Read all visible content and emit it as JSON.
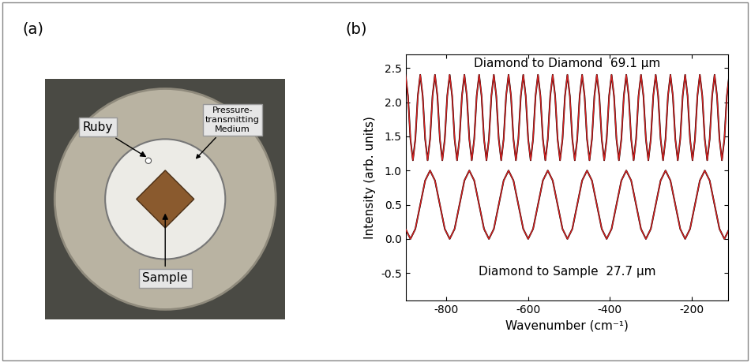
{
  "panel_a": {
    "label": "(a)",
    "labels": [
      "Ruby",
      "Pressure-\ntransmitting\nMedium",
      "Sample"
    ]
  },
  "chart_data": {
    "type": "line",
    "panel_label": "(b)",
    "x_label": "Wavenumber (cm⁻¹)",
    "y_label": "Intensity (arb. units)",
    "annotations": [
      "Diamond to Diamond  69.1 μm",
      "Diamond to Sample  27.7 μm"
    ],
    "xlim": [
      -900,
      -110
    ],
    "xticks": [
      -800,
      -600,
      -400,
      -200
    ],
    "ylim": [
      -0.9,
      2.7
    ],
    "yticks": [
      -0.5,
      0.0,
      0.5,
      1.0,
      1.5,
      2.0,
      2.5
    ],
    "grid": false,
    "tick_labels": true,
    "series": [
      {
        "color": "#000000",
        "line_style": "solid",
        "x": [
          -900,
          -894,
          -888,
          -882,
          -876,
          -870,
          -864,
          -858,
          -852,
          -846,
          -840,
          -834,
          -828,
          -822,
          -816,
          -810,
          -804,
          -798,
          -792,
          -786,
          -780,
          -774,
          -768,
          -762,
          -756,
          -750,
          -744,
          -738,
          -732,
          -726,
          -720,
          -714,
          -708,
          -702,
          -696,
          -690,
          -684,
          -678,
          -672,
          -666,
          -660,
          -654,
          -648,
          -642,
          -636,
          -630,
          -624,
          -618,
          -612,
          -606,
          -600,
          -594,
          -588,
          -582,
          -576,
          -570,
          -564,
          -558,
          -552,
          -546,
          -540,
          -534,
          -528,
          -522,
          -516,
          -510,
          -504,
          -498,
          -492,
          -486,
          -480,
          -474,
          -468,
          -462,
          -456,
          -450,
          -444,
          -438,
          -432,
          -426,
          -420,
          -414,
          -408,
          -402,
          -396,
          -390,
          -384,
          -378,
          -372,
          -366,
          -360,
          -354,
          -348,
          -342,
          -336,
          -330,
          -324,
          -318,
          -312,
          -306,
          -300,
          -294,
          -288,
          -282,
          -276,
          -270,
          -264,
          -258,
          -252,
          -246,
          -240,
          -234,
          -228,
          -222,
          -216,
          -210,
          -204,
          -198,
          -192,
          -186,
          -180,
          -174,
          -168,
          -162,
          -156,
          -150,
          -144,
          -138,
          -132,
          -126,
          -120,
          -114,
          -108
        ],
        "values": [
          2.4,
          2.09,
          1.46,
          1.15,
          1.46,
          2.09,
          2.4,
          2.09,
          1.46,
          1.15,
          1.46,
          2.09,
          2.4,
          2.09,
          1.46,
          1.15,
          1.46,
          2.09,
          2.4,
          2.09,
          1.46,
          1.15,
          1.46,
          2.09,
          2.4,
          2.09,
          1.46,
          1.15,
          1.46,
          2.09,
          2.4,
          2.09,
          1.46,
          1.15,
          1.46,
          2.09,
          2.4,
          2.09,
          1.46,
          1.15,
          1.46,
          2.09,
          2.4,
          2.09,
          1.46,
          1.15,
          1.46,
          2.09,
          2.4,
          2.09,
          1.46,
          1.15,
          1.46,
          2.09,
          2.4,
          2.09,
          1.46,
          1.15,
          1.46,
          2.09,
          2.4,
          2.09,
          1.46,
          1.15,
          1.46,
          2.09,
          2.4,
          2.09,
          1.46,
          1.15,
          1.46,
          2.09,
          2.4,
          2.09,
          1.46,
          1.15,
          1.46,
          2.09,
          2.4,
          2.09,
          1.46,
          1.15,
          1.46,
          2.09,
          2.4,
          2.09,
          1.46,
          1.15,
          1.46,
          2.09,
          2.4,
          2.09,
          1.46,
          1.15,
          1.46,
          2.09,
          2.4,
          2.09,
          1.46,
          1.15,
          1.46,
          2.09,
          2.4,
          2.09,
          1.46,
          1.15,
          1.46,
          2.09,
          2.4,
          2.09,
          1.46,
          1.15,
          1.46,
          2.09,
          2.4,
          2.09,
          1.46,
          1.15,
          1.46,
          2.09,
          2.4,
          2.09,
          1.46,
          1.15,
          1.46,
          2.09,
          2.4,
          2.09,
          1.46,
          1.15,
          1.46,
          2.09,
          2.4
        ]
      },
      {
        "color": "#d62020",
        "line_style": "solid",
        "x": [
          -900,
          -894,
          -888,
          -882,
          -876,
          -870,
          -864,
          -858,
          -852,
          -846,
          -840,
          -834,
          -828,
          -822,
          -816,
          -810,
          -804,
          -798,
          -792,
          -786,
          -780,
          -774,
          -768,
          -762,
          -756,
          -750,
          -744,
          -738,
          -732,
          -726,
          -720,
          -714,
          -708,
          -702,
          -696,
          -690,
          -684,
          -678,
          -672,
          -666,
          -660,
          -654,
          -648,
          -642,
          -636,
          -630,
          -624,
          -618,
          -612,
          -606,
          -600,
          -594,
          -588,
          -582,
          -576,
          -570,
          -564,
          -558,
          -552,
          -546,
          -540,
          -534,
          -528,
          -522,
          -516,
          -510,
          -504,
          -498,
          -492,
          -486,
          -480,
          -474,
          -468,
          -462,
          -456,
          -450,
          -444,
          -438,
          -432,
          -426,
          -420,
          -414,
          -408,
          -402,
          -396,
          -390,
          -384,
          -378,
          -372,
          -366,
          -360,
          -354,
          -348,
          -342,
          -336,
          -330,
          -324,
          -318,
          -312,
          -306,
          -300,
          -294,
          -288,
          -282,
          -276,
          -270,
          -264,
          -258,
          -252,
          -246,
          -240,
          -234,
          -228,
          -222,
          -216,
          -210,
          -204,
          -198,
          -192,
          -186,
          -180,
          -174,
          -168,
          -162,
          -156,
          -150,
          -144,
          -138,
          -132,
          -126,
          -120,
          -114,
          -108
        ],
        "values": [
          2.4,
          2.09,
          1.46,
          1.15,
          1.46,
          2.09,
          2.4,
          2.09,
          1.46,
          1.15,
          1.46,
          2.09,
          2.4,
          2.09,
          1.46,
          1.15,
          1.46,
          2.09,
          2.4,
          2.09,
          1.46,
          1.15,
          1.46,
          2.09,
          2.4,
          2.09,
          1.46,
          1.15,
          1.46,
          2.09,
          2.4,
          2.09,
          1.46,
          1.15,
          1.46,
          2.09,
          2.4,
          2.09,
          1.46,
          1.15,
          1.46,
          2.09,
          2.4,
          2.09,
          1.46,
          1.15,
          1.46,
          2.09,
          2.4,
          2.09,
          1.46,
          1.15,
          1.46,
          2.09,
          2.4,
          2.09,
          1.46,
          1.15,
          1.46,
          2.09,
          2.4,
          2.09,
          1.46,
          1.15,
          1.46,
          2.09,
          2.4,
          2.09,
          1.46,
          1.15,
          1.46,
          2.09,
          2.4,
          2.09,
          1.46,
          1.15,
          1.46,
          2.09,
          2.4,
          2.09,
          1.46,
          1.15,
          1.46,
          2.09,
          2.4,
          2.09,
          1.46,
          1.15,
          1.46,
          2.09,
          2.4,
          2.09,
          1.46,
          1.15,
          1.46,
          2.09,
          2.4,
          2.09,
          1.46,
          1.15,
          1.46,
          2.09,
          2.4,
          2.09,
          1.46,
          1.15,
          1.46,
          2.09,
          2.4,
          2.09,
          1.46,
          1.15,
          1.46,
          2.09,
          2.4,
          2.09,
          1.46,
          1.15,
          1.46,
          2.09,
          2.4,
          2.09,
          1.46,
          1.15,
          1.46,
          2.09,
          2.4,
          2.09,
          1.46,
          1.15,
          1.46,
          2.09,
          2.4
        ]
      },
      {
        "color": "#000000",
        "line_style": "solid",
        "x": [
          -900,
          -888,
          -876,
          -864,
          -852,
          -840,
          -828,
          -816,
          -804,
          -792,
          -780,
          -768,
          -756,
          -744,
          -732,
          -720,
          -708,
          -696,
          -684,
          -672,
          -660,
          -648,
          -636,
          -624,
          -612,
          -600,
          -588,
          -576,
          -564,
          -552,
          -540,
          -528,
          -516,
          -504,
          -492,
          -480,
          -468,
          -456,
          -444,
          -432,
          -420,
          -408,
          -396,
          -384,
          -372,
          -360,
          -348,
          -336,
          -324,
          -312,
          -300,
          -288,
          -276,
          -264,
          -252,
          -240,
          -228,
          -216,
          -204,
          -192,
          -180,
          -168,
          -156,
          -144,
          -132,
          -120,
          -108
        ],
        "values": [
          0.146,
          0.0,
          0.146,
          0.5,
          0.854,
          1.0,
          0.854,
          0.5,
          0.146,
          0.0,
          0.146,
          0.5,
          0.854,
          1.0,
          0.854,
          0.5,
          0.146,
          0.0,
          0.146,
          0.5,
          0.854,
          1.0,
          0.854,
          0.5,
          0.146,
          0.0,
          0.146,
          0.5,
          0.854,
          1.0,
          0.854,
          0.5,
          0.146,
          0.0,
          0.146,
          0.5,
          0.854,
          1.0,
          0.854,
          0.5,
          0.146,
          0.0,
          0.146,
          0.5,
          0.854,
          1.0,
          0.854,
          0.5,
          0.146,
          0.0,
          0.146,
          0.5,
          0.854,
          1.0,
          0.854,
          0.5,
          0.146,
          0.0,
          0.146,
          0.5,
          0.854,
          1.0,
          0.854,
          0.5,
          0.146,
          0.0,
          0.146
        ]
      },
      {
        "color": "#d62020",
        "line_style": "solid",
        "x": [
          -900,
          -888,
          -876,
          -864,
          -852,
          -840,
          -828,
          -816,
          -804,
          -792,
          -780,
          -768,
          -756,
          -744,
          -732,
          -720,
          -708,
          -696,
          -684,
          -672,
          -660,
          -648,
          -636,
          -624,
          -612,
          -600,
          -588,
          -576,
          -564,
          -552,
          -540,
          -528,
          -516,
          -504,
          -492,
          -480,
          -468,
          -456,
          -444,
          -432,
          -420,
          -408,
          -396,
          -384,
          -372,
          -360,
          -348,
          -336,
          -324,
          -312,
          -300,
          -288,
          -276,
          -264,
          -252,
          -240,
          -228,
          -216,
          -204,
          -192,
          -180,
          -168,
          -156,
          -144,
          -132,
          -120,
          -108
        ],
        "values": [
          0.146,
          0.0,
          0.146,
          0.5,
          0.854,
          1.0,
          0.854,
          0.5,
          0.146,
          0.0,
          0.146,
          0.5,
          0.854,
          1.0,
          0.854,
          0.5,
          0.146,
          0.0,
          0.146,
          0.5,
          0.854,
          1.0,
          0.854,
          0.5,
          0.146,
          0.0,
          0.146,
          0.5,
          0.854,
          1.0,
          0.854,
          0.5,
          0.146,
          0.0,
          0.146,
          0.5,
          0.854,
          1.0,
          0.854,
          0.5,
          0.146,
          0.0,
          0.146,
          0.5,
          0.854,
          1.0,
          0.854,
          0.5,
          0.146,
          0.0,
          0.146,
          0.5,
          0.854,
          1.0,
          0.854,
          0.5,
          0.146,
          0.0,
          0.146,
          0.5,
          0.854,
          1.0,
          0.854,
          0.5,
          0.146,
          0.0,
          0.146
        ]
      }
    ]
  }
}
